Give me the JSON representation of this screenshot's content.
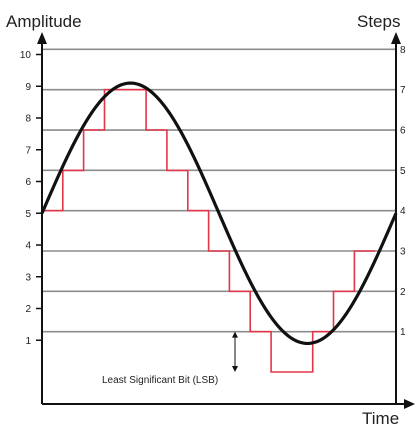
{
  "titles": {
    "left_axis": "Amplitude",
    "right_axis": "Steps",
    "x_axis": "Time"
  },
  "left_ticks": [
    "1",
    "2",
    "3",
    "4",
    "5",
    "6",
    "7",
    "8",
    "9",
    "10"
  ],
  "right_ticks": [
    "1",
    "2",
    "3",
    "4",
    "5",
    "6",
    "7",
    "8"
  ],
  "annotation": "Least Significant Bit (LSB)",
  "colors": {
    "axis": "#111111",
    "gridline": "#8c8c8c",
    "sine": "#111111",
    "quantized": "#e0364a"
  },
  "signal": {
    "sine_center_amplitude": 5,
    "sine_peak_amplitude": 9.1,
    "sine_trough_amplitude": 0.9,
    "quantized_levels_in_steps": [
      4,
      5,
      6,
      7,
      7,
      6,
      5,
      4,
      3,
      2,
      1,
      0,
      0,
      1,
      2,
      3
    ]
  }
}
